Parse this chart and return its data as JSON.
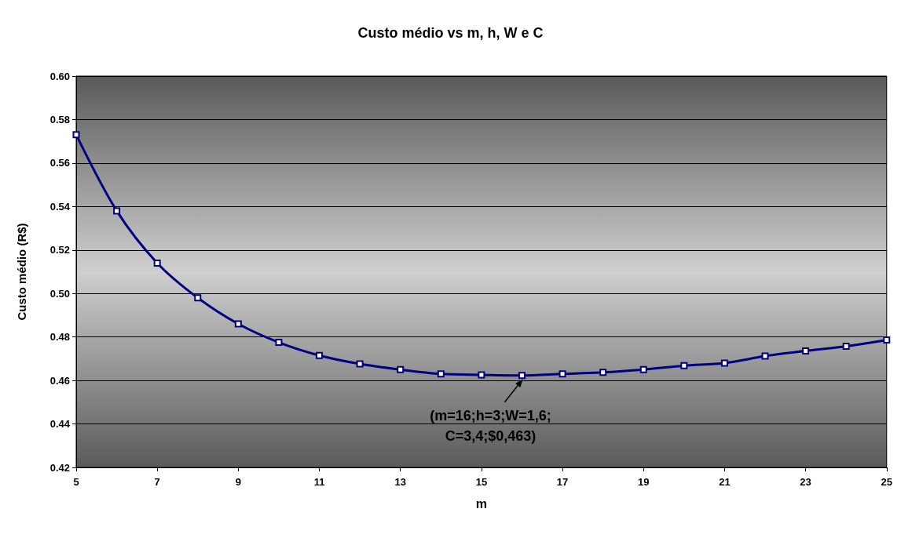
{
  "chart_data": {
    "type": "line",
    "title": "Custo médio vs m, h, W e C",
    "xlabel": "m",
    "ylabel": "Custo médio (R$)",
    "x": [
      5,
      6,
      7,
      8,
      9,
      10,
      11,
      12,
      13,
      14,
      15,
      16,
      17,
      18,
      19,
      20,
      21,
      22,
      23,
      24,
      25
    ],
    "series": [
      {
        "color": "#000080",
        "values": [
          0.573,
          0.538,
          0.514,
          0.498,
          0.486,
          0.4775,
          0.4715,
          0.4676,
          0.465,
          0.463,
          0.4626,
          0.4623,
          0.463,
          0.4637,
          0.465,
          0.4668,
          0.468,
          0.4712,
          0.4736,
          0.4757,
          0.4786
        ]
      }
    ],
    "xlim": [
      5,
      25
    ],
    "xticks": [
      5,
      7,
      9,
      11,
      13,
      15,
      17,
      19,
      21,
      23,
      25
    ],
    "ylim": [
      0.42,
      0.6
    ],
    "yticks": [
      {
        "value": 0.42,
        "label": "0.42"
      },
      {
        "value": 0.44,
        "label": "0.44"
      },
      {
        "value": 0.46,
        "label": "0.46"
      },
      {
        "value": 0.48,
        "label": "0.48"
      },
      {
        "value": 0.5,
        "label": "0.50"
      },
      {
        "value": 0.52,
        "label": "0.52"
      },
      {
        "value": 0.54,
        "label": "0.54"
      },
      {
        "value": 0.56,
        "label": "0.56"
      },
      {
        "value": 0.58,
        "label": "0.58"
      },
      {
        "value": 0.6,
        "label": "0.60"
      }
    ],
    "grid": "y",
    "marker": "square",
    "line_style": "solid",
    "annotations": [
      {
        "text": "(m=16;h=3;W=1,6;\nC=3,4;$0,463)",
        "x": 16,
        "y": 0.4623
      }
    ]
  }
}
